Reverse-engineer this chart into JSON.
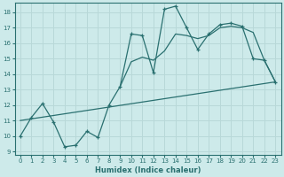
{
  "xlabel": "Humidex (Indice chaleur)",
  "xlim": [
    -0.5,
    23.5
  ],
  "ylim": [
    8.8,
    18.6
  ],
  "yticks": [
    9,
    10,
    11,
    12,
    13,
    14,
    15,
    16,
    17,
    18
  ],
  "xticks": [
    0,
    1,
    2,
    3,
    4,
    5,
    6,
    7,
    8,
    9,
    10,
    11,
    12,
    13,
    14,
    15,
    16,
    17,
    18,
    19,
    20,
    21,
    22,
    23
  ],
  "bg_color": "#cdeaea",
  "line_color": "#2a7070",
  "grid_color": "#b8d8d8",
  "zigzag_x": [
    0,
    1,
    2,
    3,
    4,
    5,
    6,
    7,
    8,
    9,
    10,
    11,
    12,
    13,
    14,
    15,
    16,
    17,
    18,
    19,
    20,
    21,
    22,
    23
  ],
  "zigzag_y": [
    10.0,
    11.2,
    12.1,
    10.9,
    9.3,
    9.4,
    10.3,
    9.9,
    12.0,
    13.2,
    16.6,
    16.5,
    14.1,
    18.2,
    18.4,
    17.0,
    15.6,
    16.6,
    17.2,
    17.3,
    17.1,
    15.0,
    14.9,
    13.5
  ],
  "smooth_x": [
    9,
    10,
    11,
    12,
    13,
    14,
    15,
    16,
    17,
    18,
    19,
    20,
    21,
    22,
    23
  ],
  "smooth_y": [
    13.2,
    14.8,
    15.1,
    14.9,
    15.5,
    16.6,
    16.5,
    16.3,
    16.5,
    17.0,
    17.1,
    17.0,
    16.7,
    14.9,
    13.5
  ],
  "refline_x": [
    0,
    23
  ],
  "refline_y": [
    11.0,
    13.5
  ]
}
